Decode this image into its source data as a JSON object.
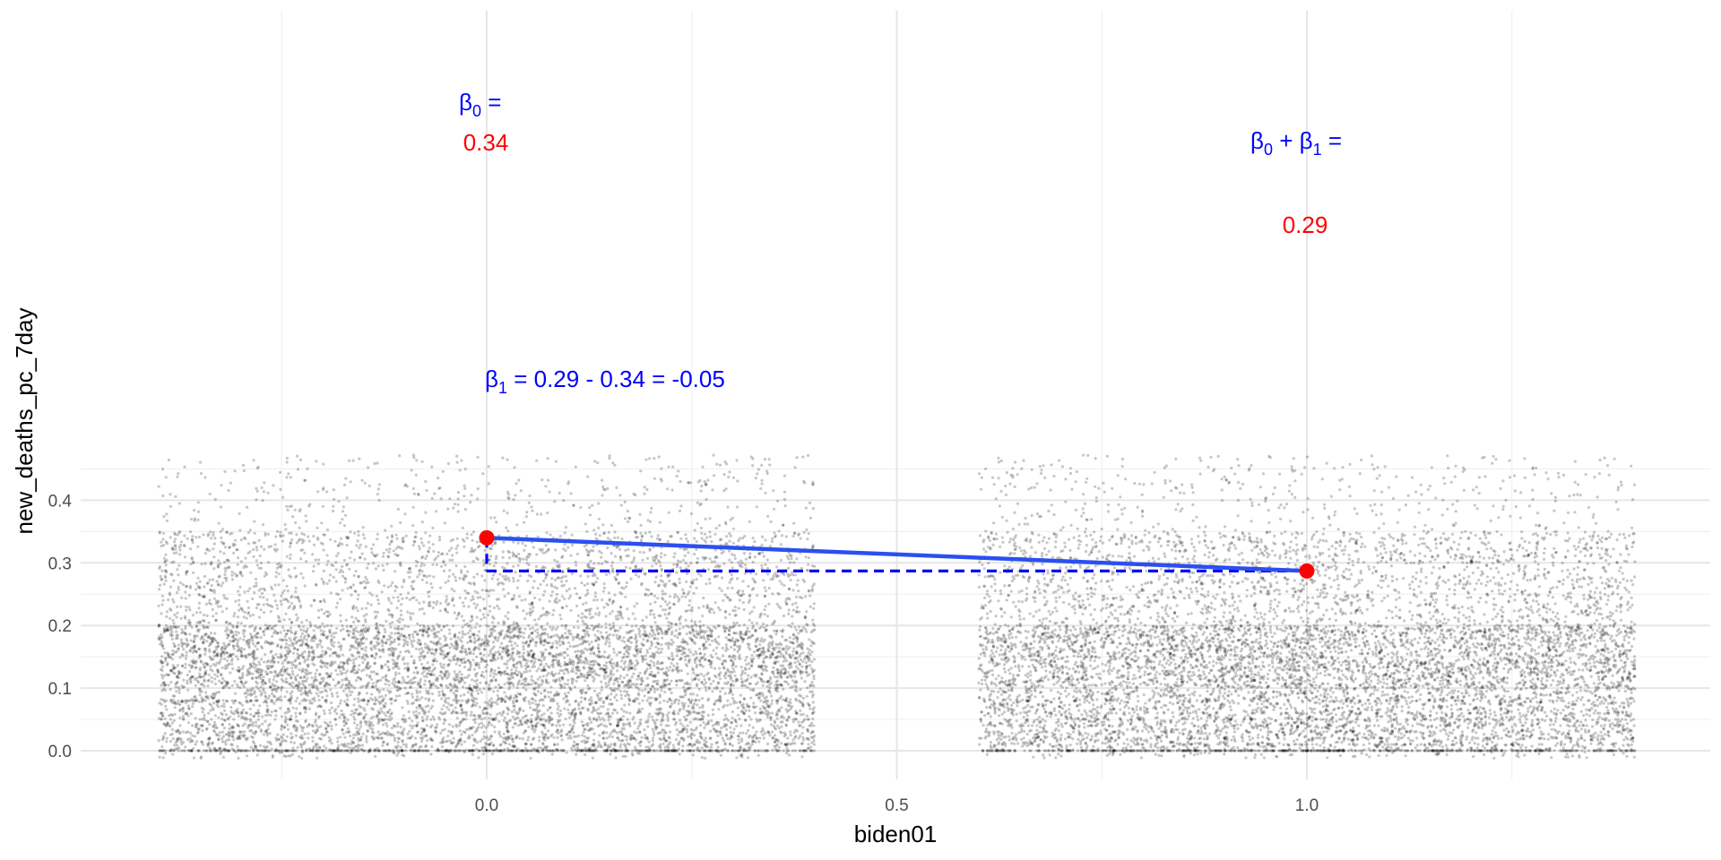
{
  "chart_data": {
    "type": "scatter",
    "title": "",
    "xlabel": "biden01",
    "ylabel": "new_deaths_pc_7day",
    "xlim": [
      -0.4,
      1.4
    ],
    "ylim": [
      -0.017,
      0.47
    ],
    "x_ticks": [
      0.0,
      0.5,
      1.0
    ],
    "x_tick_labels": [
      "0.0",
      "0.5",
      "1.0"
    ],
    "y_ticks": [
      0.0,
      0.1,
      0.2,
      0.3,
      0.4
    ],
    "y_tick_labels": [
      "0.0",
      "0.1",
      "0.2",
      "0.3",
      "0.4"
    ],
    "grid": true,
    "jitter": {
      "groups": [
        {
          "x": 0,
          "x_min": -0.4,
          "x_max": 0.4
        },
        {
          "x": 1,
          "x_min": 0.6,
          "x_max": 1.4
        }
      ],
      "point_color": "#000000",
      "point_opacity": 0.22
    },
    "fit_line": {
      "points": [
        {
          "x": 0,
          "y": 0.34
        },
        {
          "x": 1,
          "y": 0.287
        }
      ],
      "color": "#2b4ff0",
      "marker_color": "#ff0000"
    },
    "difference_guide": {
      "color": "#0000ff",
      "dashed": true
    },
    "annotations": {
      "b0_label": "β",
      "b0_sub": "0",
      "b0_eq": " =",
      "b0_value": "0.34",
      "b0b1_label1": "β",
      "b0b1_sub1": "0",
      "b0b1_plus": " + β",
      "b0b1_sub2": "1",
      "b0b1_eq": " =",
      "b0b1_value": "0.29",
      "b1_label": "β",
      "b1_sub": "1",
      "b1_eq": " = 0.29 - 0.34 = -0.05",
      "label_color": "#0000ff",
      "value_color": "#ff0000"
    }
  }
}
